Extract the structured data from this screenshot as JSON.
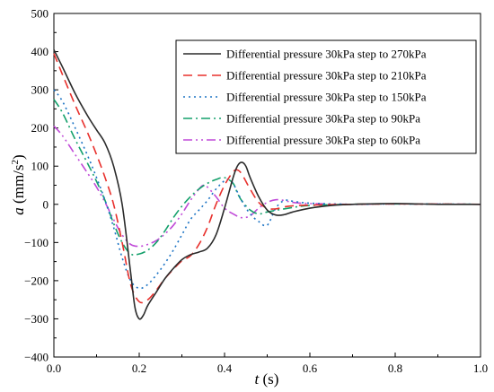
{
  "chart_data": {
    "type": "line",
    "title": "",
    "xlabel": {
      "symbol": "t",
      "unit": " (s)"
    },
    "ylabel": {
      "symbol": "a",
      "unit": " (mm/s",
      "sup": "2",
      "close": ")"
    },
    "xlim": [
      0,
      1.0
    ],
    "ylim": [
      -400,
      500
    ],
    "xticks": [
      0.0,
      0.2,
      0.4,
      0.6,
      0.8,
      1.0
    ],
    "xtick_labels": [
      "0.0",
      "0.2",
      "0.4",
      "0.6",
      "0.8",
      "1.0"
    ],
    "yticks": [
      -400,
      -300,
      -200,
      -100,
      0,
      100,
      200,
      300,
      400,
      500
    ],
    "ytick_labels": [
      "−400",
      "−300",
      "−200",
      "−100",
      "0",
      "100",
      "200",
      "300",
      "400",
      "500"
    ],
    "grid": false,
    "legend_position": "top-right",
    "series": [
      {
        "name": "Differential pressure 30kPa step to 270kPa",
        "color": "#2b2b2b",
        "dash": "solid",
        "x": [
          0,
          0.02,
          0.05,
          0.08,
          0.1,
          0.12,
          0.14,
          0.16,
          0.18,
          0.19,
          0.2,
          0.21,
          0.22,
          0.24,
          0.26,
          0.28,
          0.3,
          0.32,
          0.34,
          0.36,
          0.38,
          0.4,
          0.42,
          0.43,
          0.44,
          0.45,
          0.46,
          0.48,
          0.5,
          0.52,
          0.54,
          0.56,
          0.6,
          0.65,
          0.7,
          0.8,
          0.9,
          1.0
        ],
        "y": [
          405,
          360,
          290,
          230,
          195,
          160,
          100,
          0,
          -180,
          -270,
          -300,
          -290,
          -265,
          -230,
          -195,
          -168,
          -145,
          -132,
          -125,
          -115,
          -80,
          -10,
          70,
          100,
          110,
          100,
          70,
          20,
          -15,
          -28,
          -27,
          -20,
          -10,
          -3,
          0,
          2,
          0,
          0
        ]
      },
      {
        "name": "Differential pressure 30kPa step to 210kPa",
        "color": "#e8302c",
        "dash": "10,6",
        "x": [
          0,
          0.02,
          0.05,
          0.08,
          0.1,
          0.12,
          0.14,
          0.16,
          0.18,
          0.2,
          0.22,
          0.24,
          0.26,
          0.28,
          0.3,
          0.32,
          0.34,
          0.36,
          0.38,
          0.4,
          0.42,
          0.43,
          0.44,
          0.46,
          0.48,
          0.5,
          0.52,
          0.55,
          0.6,
          0.7,
          0.8,
          1.0
        ],
        "y": [
          395,
          340,
          260,
          185,
          130,
          70,
          0,
          -100,
          -210,
          -255,
          -250,
          -225,
          -195,
          -170,
          -148,
          -135,
          -105,
          -60,
          0,
          50,
          85,
          90,
          80,
          40,
          5,
          -10,
          -12,
          -5,
          -2,
          0,
          1,
          0
        ]
      },
      {
        "name": "Differential pressure 30kPa step to 150kPa",
        "color": "#1b73c4",
        "dash": "2,4",
        "x": [
          0,
          0.02,
          0.05,
          0.08,
          0.1,
          0.12,
          0.14,
          0.16,
          0.18,
          0.2,
          0.22,
          0.24,
          0.26,
          0.28,
          0.3,
          0.32,
          0.34,
          0.36,
          0.38,
          0.4,
          0.41,
          0.42,
          0.44,
          0.46,
          0.48,
          0.5,
          0.52,
          0.54,
          0.56,
          0.6,
          0.7,
          0.8,
          1.0
        ],
        "y": [
          300,
          270,
          200,
          125,
          70,
          10,
          -60,
          -140,
          -200,
          -220,
          -210,
          -185,
          -155,
          -120,
          -80,
          -40,
          -15,
          10,
          40,
          62,
          65,
          55,
          10,
          -25,
          -45,
          -55,
          -10,
          10,
          8,
          3,
          0,
          1,
          0
        ]
      },
      {
        "name": "Differential pressure 30kPa step to 90kPa",
        "color": "#14a06b",
        "dash": "10,4,2,4",
        "x": [
          0,
          0.02,
          0.05,
          0.08,
          0.1,
          0.12,
          0.14,
          0.16,
          0.18,
          0.2,
          0.22,
          0.24,
          0.26,
          0.28,
          0.3,
          0.32,
          0.34,
          0.36,
          0.38,
          0.4,
          0.42,
          0.43,
          0.44,
          0.46,
          0.48,
          0.5,
          0.55,
          0.6,
          0.7,
          0.8,
          1.0
        ],
        "y": [
          275,
          240,
          170,
          105,
          60,
          10,
          -50,
          -100,
          -130,
          -130,
          -120,
          -100,
          -70,
          -35,
          -5,
          20,
          40,
          55,
          65,
          70,
          55,
          30,
          10,
          -15,
          -25,
          -20,
          -10,
          -3,
          0,
          1,
          0
        ]
      },
      {
        "name": "Differential pressure 30kPa step to 60kPa",
        "color": "#c04ad8",
        "dash": "10,4,2,4,2,4",
        "x": [
          0,
          0.02,
          0.05,
          0.08,
          0.1,
          0.12,
          0.14,
          0.16,
          0.18,
          0.2,
          0.22,
          0.24,
          0.26,
          0.28,
          0.3,
          0.32,
          0.34,
          0.35,
          0.36,
          0.38,
          0.4,
          0.42,
          0.44,
          0.46,
          0.48,
          0.5,
          0.52,
          0.54,
          0.56,
          0.6,
          0.7,
          0.8,
          1.0
        ],
        "y": [
          205,
          180,
          130,
          80,
          45,
          5,
          -40,
          -80,
          -105,
          -110,
          -105,
          -95,
          -78,
          -55,
          -25,
          10,
          40,
          50,
          45,
          20,
          -10,
          -25,
          -35,
          -30,
          -10,
          5,
          12,
          10,
          5,
          2,
          0,
          1,
          0
        ]
      }
    ]
  }
}
